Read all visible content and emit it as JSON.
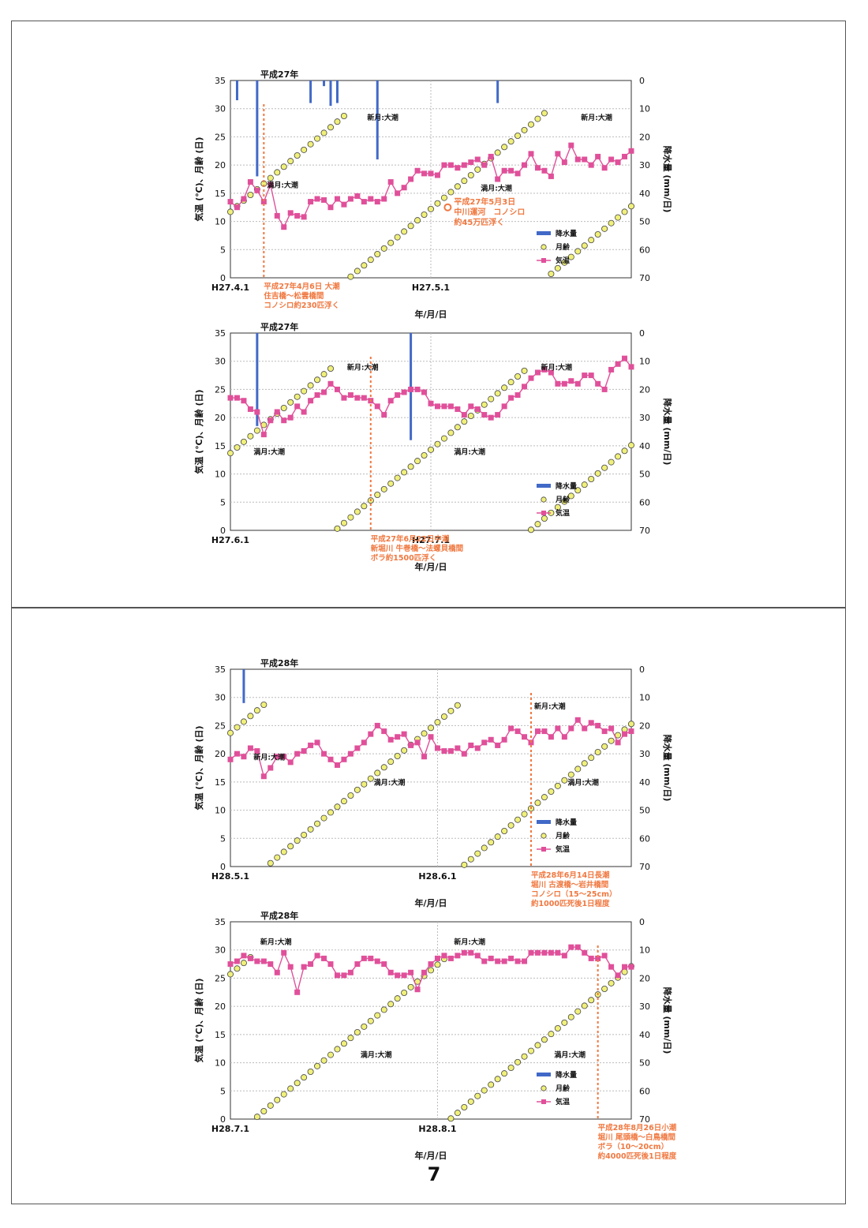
{
  "page_number": "7",
  "chart_data": [
    {
      "type": "line",
      "title": "平成27年",
      "xlabel": "年/月/日",
      "ylabel": "気温 (℃)、月齢 (日)",
      "ylabel2": "降水量 (mm/日)",
      "x_start": "2015-04-01",
      "x_days": 61,
      "x_ticks": [
        {
          "day": 0,
          "label": "H27.4.1"
        },
        {
          "day": 30,
          "label": "H27.5.1"
        }
      ],
      "ylim": [
        0,
        35
      ],
      "y_ticks": [
        "0",
        "5",
        "10",
        "15",
        "20",
        "25",
        "30",
        "35"
      ],
      "y2lim": [
        0,
        70
      ],
      "y2_ticks": [
        "0",
        "10",
        "20",
        "30",
        "40",
        "50",
        "60",
        "70"
      ],
      "legend": {
        "labels": [
          "降水量",
          "月齢",
          "気温"
        ],
        "position": "bottom-right"
      },
      "colors": {
        "precip": "#4169c8",
        "moon": "#f0f07a",
        "temp": "#e0509a",
        "event": "#f07840"
      },
      "series": [
        {
          "name": "気温",
          "values": [
            13.5,
            12.5,
            14,
            17,
            15.5,
            13.5,
            16.5,
            11,
            9,
            11.5,
            11,
            10.8,
            13.5,
            14,
            13.8,
            12.5,
            14,
            13,
            14,
            14.5,
            13.5,
            14,
            13.5,
            14,
            17,
            15,
            16,
            17.5,
            19,
            18.5,
            18.5,
            18.2,
            20,
            20,
            19.5,
            20,
            20.5,
            21,
            20,
            21.5,
            17.5,
            19,
            19,
            18.5,
            20,
            22,
            19.5,
            19,
            18,
            22,
            20.5,
            23.5,
            21,
            21,
            20,
            21.5,
            19.5,
            21,
            20.5,
            21.5,
            22.5
          ]
        },
        {
          "name": "月齢",
          "values": [
            11.7,
            12.7,
            13.7,
            14.7,
            15.7,
            16.7,
            17.7,
            18.7,
            19.7,
            20.7,
            21.7,
            22.7,
            23.7,
            24.7,
            25.7,
            26.7,
            27.7,
            28.7,
            0.2,
            1.2,
            2.2,
            3.2,
            4.2,
            5.2,
            6.2,
            7.2,
            8.2,
            9.2,
            10.2,
            11.2,
            12.2,
            13.2,
            14.2,
            15.2,
            16.2,
            17.2,
            18.2,
            19.2,
            20.2,
            21.2,
            22.2,
            23.2,
            24.2,
            25.2,
            26.2,
            27.2,
            28.2,
            29.2,
            0.7,
            1.7,
            2.7,
            3.7,
            4.7,
            5.7,
            6.7,
            7.7,
            8.7,
            9.7,
            10.7,
            11.7,
            12.7
          ]
        },
        {
          "name": "降水量",
          "values": [
            0,
            7,
            0,
            0,
            34,
            0,
            0,
            0,
            0,
            0,
            0,
            0,
            8,
            0,
            2,
            9,
            8,
            0,
            0,
            0,
            0,
            0,
            28,
            0,
            0,
            0,
            0,
            0,
            0,
            0,
            0,
            0,
            0,
            0,
            0,
            0,
            0,
            0,
            0,
            0,
            8,
            0,
            0,
            0,
            0,
            0,
            0,
            0,
            0,
            0,
            0,
            0,
            0,
            0,
            0,
            0,
            0,
            0,
            0,
            0,
            0
          ]
        }
      ],
      "annotations": [
        {
          "text": "満月:大潮",
          "x": 5,
          "y": 16
        },
        {
          "text": "新月:大潮",
          "x": 20,
          "y": 28
        },
        {
          "text": "満月:大潮",
          "x": 37,
          "y": 15.5
        },
        {
          "text": "新月:大潮",
          "x": 52,
          "y": 28
        }
      ],
      "events": [
        {
          "x": 5,
          "lines": [
            "平成27年4月6日 大潮",
            "住吉橋～松雲橋間",
            "コノシロ約230匹浮く"
          ]
        },
        {
          "x": 33,
          "lines": [
            "平成27年5月3日",
            "中川運河　コノシロ",
            "約45万匹浮く"
          ],
          "inline": true
        }
      ]
    },
    {
      "type": "line",
      "title": "平成27年",
      "xlabel": "年/月/日",
      "ylabel": "気温 (℃)、月齢 (日)",
      "ylabel2": "降水量 (mm/日)",
      "x_start": "2015-06-01",
      "x_days": 61,
      "x_ticks": [
        {
          "day": 0,
          "label": "H27.6.1"
        },
        {
          "day": 30,
          "label": "H27.7.1"
        }
      ],
      "ylim": [
        0,
        35
      ],
      "y_ticks": [
        "0",
        "5",
        "10",
        "15",
        "20",
        "25",
        "30",
        "35"
      ],
      "y2lim": [
        0,
        70
      ],
      "y2_ticks": [
        "0",
        "10",
        "20",
        "30",
        "40",
        "50",
        "60",
        "70"
      ],
      "legend": {
        "labels": [
          "降水量",
          "月齢",
          "気温"
        ],
        "position": "bottom-right"
      },
      "colors": {
        "precip": "#4169c8",
        "moon": "#f0f07a",
        "temp": "#e0509a",
        "event": "#f07840"
      },
      "series": [
        {
          "name": "気温",
          "values": [
            23.5,
            23.5,
            23,
            21.5,
            21,
            17,
            19.5,
            21,
            19.5,
            20,
            22,
            21,
            23,
            24,
            24.5,
            26,
            25,
            23.5,
            24,
            23.5,
            23.5,
            23,
            22,
            20.5,
            23,
            24,
            24.5,
            25,
            25,
            24.5,
            22.5,
            22,
            22,
            22,
            21.5,
            20.5,
            22,
            21.5,
            20.5,
            20,
            20.5,
            22,
            23.5,
            24,
            25.5,
            27,
            28,
            28.5,
            28,
            26,
            26,
            26.5,
            26,
            27.5,
            27.5,
            26,
            25,
            28.5,
            29.5,
            30.5,
            29
          ]
        },
        {
          "name": "月齢",
          "values": [
            13.7,
            14.7,
            15.7,
            16.7,
            17.7,
            18.7,
            19.7,
            20.7,
            21.7,
            22.7,
            23.7,
            24.7,
            25.7,
            26.7,
            27.7,
            28.7,
            0.3,
            1.3,
            2.3,
            3.3,
            4.3,
            5.3,
            6.3,
            7.3,
            8.3,
            9.3,
            10.3,
            11.3,
            12.3,
            13.3,
            14.3,
            15.3,
            16.3,
            17.3,
            18.3,
            19.3,
            20.3,
            21.3,
            22.3,
            23.3,
            24.3,
            25.3,
            26.3,
            27.3,
            28.3,
            0.1,
            1.1,
            2.1,
            3.1,
            4.1,
            5.1,
            6.1,
            7.1,
            8.1,
            9.1,
            10.1,
            11.1,
            12.1,
            13.1,
            14.1,
            15.1
          ]
        },
        {
          "name": "降水量",
          "values": [
            0,
            0,
            0,
            0,
            33,
            0,
            0,
            0,
            0,
            0,
            0,
            0,
            0,
            0,
            0,
            0,
            0,
            0,
            0,
            0,
            0,
            0,
            0,
            0,
            0,
            0,
            0,
            38,
            0,
            0,
            0,
            0,
            0,
            0,
            0,
            0,
            0,
            0,
            0,
            0,
            0,
            0,
            0,
            0,
            0,
            0,
            0,
            0,
            0,
            0,
            0,
            0,
            0,
            0,
            0,
            0,
            0,
            0,
            0,
            0,
            0
          ]
        }
      ],
      "annotations": [
        {
          "text": "満月:大潮",
          "x": 3,
          "y": 13.5
        },
        {
          "text": "新月:大潮",
          "x": 17,
          "y": 28.5
        },
        {
          "text": "満月:大潮",
          "x": 33,
          "y": 13.5
        },
        {
          "text": "新月:大潮",
          "x": 46,
          "y": 28.5
        }
      ],
      "events": [
        {
          "x": 21,
          "lines": [
            "平成27年6月22日中潮",
            "新堀川 牛巻橋～法螺貝橋間",
            "ボラ約1500匹浮く"
          ]
        }
      ]
    },
    {
      "type": "line",
      "title": "平成28年",
      "xlabel": "年/月/日",
      "ylabel": "気温 (℃)、月齢 (日)",
      "ylabel2": "降水量 (mm/日)",
      "x_start": "2016-05-01",
      "x_days": 61,
      "x_ticks": [
        {
          "day": 0,
          "label": "H28.5.1"
        },
        {
          "day": 31,
          "label": "H28.6.1"
        }
      ],
      "ylim": [
        0,
        35
      ],
      "y_ticks": [
        "0",
        "5",
        "10",
        "15",
        "20",
        "25",
        "30",
        "35"
      ],
      "y2lim": [
        0,
        70
      ],
      "y2_ticks": [
        "0",
        "10",
        "20",
        "30",
        "40",
        "50",
        "60",
        "70"
      ],
      "legend": {
        "labels": [
          "降水量",
          "月齢",
          "気温"
        ],
        "position": "bottom-right"
      },
      "colors": {
        "precip": "#4169c8",
        "moon": "#f0f07a",
        "temp": "#e0509a",
        "event": "#f07840"
      },
      "series": [
        {
          "name": "気温",
          "values": [
            19,
            20,
            19.5,
            21,
            20.5,
            16,
            17.5,
            19.5,
            19.5,
            18.5,
            20,
            20.5,
            21.5,
            22,
            20,
            19,
            18,
            19,
            20,
            21,
            22,
            23.5,
            25,
            24,
            22.5,
            23,
            23.5,
            21.5,
            22,
            19.5,
            23,
            21,
            20.5,
            20.5,
            21,
            20,
            21.5,
            21,
            22,
            22.5,
            21.5,
            22.5,
            24.5,
            24,
            23,
            22,
            24,
            24,
            23,
            24.5,
            23,
            24.5,
            26,
            24.5,
            25.5,
            25,
            24,
            24.5,
            22,
            23.5,
            24
          ]
        },
        {
          "name": "月齢",
          "values": [
            23.7,
            24.7,
            25.7,
            26.7,
            27.7,
            28.7,
            0.6,
            1.6,
            2.6,
            3.6,
            4.6,
            5.6,
            6.6,
            7.6,
            8.6,
            9.6,
            10.6,
            11.6,
            12.6,
            13.6,
            14.6,
            15.6,
            16.6,
            17.6,
            18.6,
            19.6,
            20.6,
            21.6,
            22.6,
            23.6,
            24.6,
            25.6,
            26.6,
            27.6,
            28.6,
            0.3,
            1.3,
            2.3,
            3.3,
            4.3,
            5.3,
            6.3,
            7.3,
            8.3,
            9.3,
            10.3,
            11.3,
            12.3,
            13.3,
            14.3,
            15.3,
            16.3,
            17.3,
            18.3,
            19.3,
            20.3,
            21.3,
            22.3,
            23.3,
            24.3,
            25.3
          ]
        },
        {
          "name": "降水量",
          "values": [
            0,
            0,
            12,
            0,
            0,
            0,
            0,
            0,
            0,
            0,
            0,
            0,
            0,
            0,
            0,
            0,
            0,
            0,
            0,
            0,
            0,
            0,
            0,
            0,
            0,
            0,
            0,
            0,
            0,
            0,
            0,
            0,
            0,
            0,
            0,
            0,
            0,
            0,
            0,
            0,
            0,
            0,
            0,
            0,
            0,
            0,
            0,
            0,
            0,
            0,
            0,
            0,
            0,
            0,
            0,
            0,
            0,
            0,
            0,
            0,
            0
          ]
        }
      ],
      "annotations": [
        {
          "text": "新月:大潮",
          "x": 3,
          "y": 19
        },
        {
          "text": "満月:大潮",
          "x": 21,
          "y": 14.5
        },
        {
          "text": "新月:大潮",
          "x": 45,
          "y": 28
        },
        {
          "text": "満月:大潮",
          "x": 50,
          "y": 14.5
        }
      ],
      "events": [
        {
          "x": 45,
          "lines": [
            "平成28年6月14日長潮",
            "堀川 古渡橋～岩井橋間",
            "コノシロ（15～25cm）",
            "約1000匹死後1日程度"
          ]
        }
      ]
    },
    {
      "type": "line",
      "title": "平成28年",
      "xlabel": "年/月/日",
      "ylabel": "気温 (℃)、月齢 (日)",
      "ylabel2": "降水量 (mm/日)",
      "x_start": "2016-07-01",
      "x_days": 61,
      "x_ticks": [
        {
          "day": 0,
          "label": "H28.7.1"
        },
        {
          "day": 31,
          "label": "H28.8.1"
        }
      ],
      "ylim": [
        0,
        35
      ],
      "y_ticks": [
        "0",
        "5",
        "10",
        "15",
        "20",
        "25",
        "30",
        "35"
      ],
      "y2lim": [
        0,
        70
      ],
      "y2_ticks": [
        "0",
        "10",
        "20",
        "30",
        "40",
        "50",
        "60",
        "70"
      ],
      "legend": {
        "labels": [
          "降水量",
          "月齢",
          "気温"
        ],
        "position": "bottom-right"
      },
      "colors": {
        "precip": "#4169c8",
        "moon": "#f0f07a",
        "temp": "#e0509a",
        "event": "#f07840"
      },
      "series": [
        {
          "name": "気温",
          "values": [
            27.5,
            28,
            29,
            28.5,
            28,
            28,
            27.5,
            26,
            29.5,
            27,
            22.5,
            27,
            27.5,
            29,
            28.5,
            27.5,
            25.5,
            25.5,
            26,
            27.5,
            28.5,
            28.5,
            28,
            27.5,
            26,
            25.5,
            25.5,
            26,
            23,
            26,
            27.5,
            28.5,
            29,
            28.5,
            29,
            29.5,
            29.5,
            29,
            28,
            28.5,
            28,
            28,
            28.5,
            28,
            28,
            29.5,
            29.5,
            29.5,
            29.5,
            29.5,
            29,
            30.5,
            30.5,
            29.5,
            28.5,
            28.5,
            29,
            27,
            25.5,
            27,
            27
          ]
        },
        {
          "name": "月齢",
          "values": [
            25.7,
            26.7,
            27.7,
            28.7,
            0.4,
            1.4,
            2.4,
            3.4,
            4.4,
            5.4,
            6.4,
            7.4,
            8.4,
            9.4,
            10.4,
            11.4,
            12.4,
            13.4,
            14.4,
            15.4,
            16.4,
            17.4,
            18.4,
            19.4,
            20.4,
            21.4,
            22.4,
            23.4,
            24.4,
            25.4,
            26.4,
            27.4,
            28.4,
            0.1,
            1.1,
            2.1,
            3.1,
            4.1,
            5.1,
            6.1,
            7.1,
            8.1,
            9.1,
            10.1,
            11.1,
            12.1,
            13.1,
            14.1,
            15.1,
            16.1,
            17.1,
            18.1,
            19.1,
            20.1,
            21.1,
            22.1,
            23.1,
            24.1,
            25.1,
            26.1,
            27.1
          ]
        },
        {
          "name": "降水量",
          "values": [
            0,
            0,
            0,
            0,
            0,
            0,
            0,
            0,
            0,
            0,
            0,
            0,
            0,
            0,
            0,
            0,
            0,
            0,
            0,
            0,
            0,
            0,
            0,
            0,
            0,
            0,
            0,
            0,
            0,
            0,
            0,
            0,
            0,
            0,
            0,
            0,
            0,
            0,
            0,
            0,
            0,
            0,
            0,
            0,
            0,
            0,
            0,
            0,
            0,
            0,
            0,
            0,
            0,
            0,
            0,
            0,
            0,
            0,
            0,
            0,
            0
          ]
        }
      ],
      "annotations": [
        {
          "text": "新月:大潮",
          "x": 4,
          "y": 31
        },
        {
          "text": "満月:大潮",
          "x": 19,
          "y": 11
        },
        {
          "text": "新月:大潮",
          "x": 33,
          "y": 31
        },
        {
          "text": "満月:大潮",
          "x": 48,
          "y": 11
        }
      ],
      "events": [
        {
          "x": 55,
          "lines": [
            "平成28年8月26日小潮",
            "堀川 尾頭橋～白鳥橋間",
            "ボラ（10～20cm）",
            "約4000匹死後1日程度"
          ]
        }
      ]
    }
  ]
}
